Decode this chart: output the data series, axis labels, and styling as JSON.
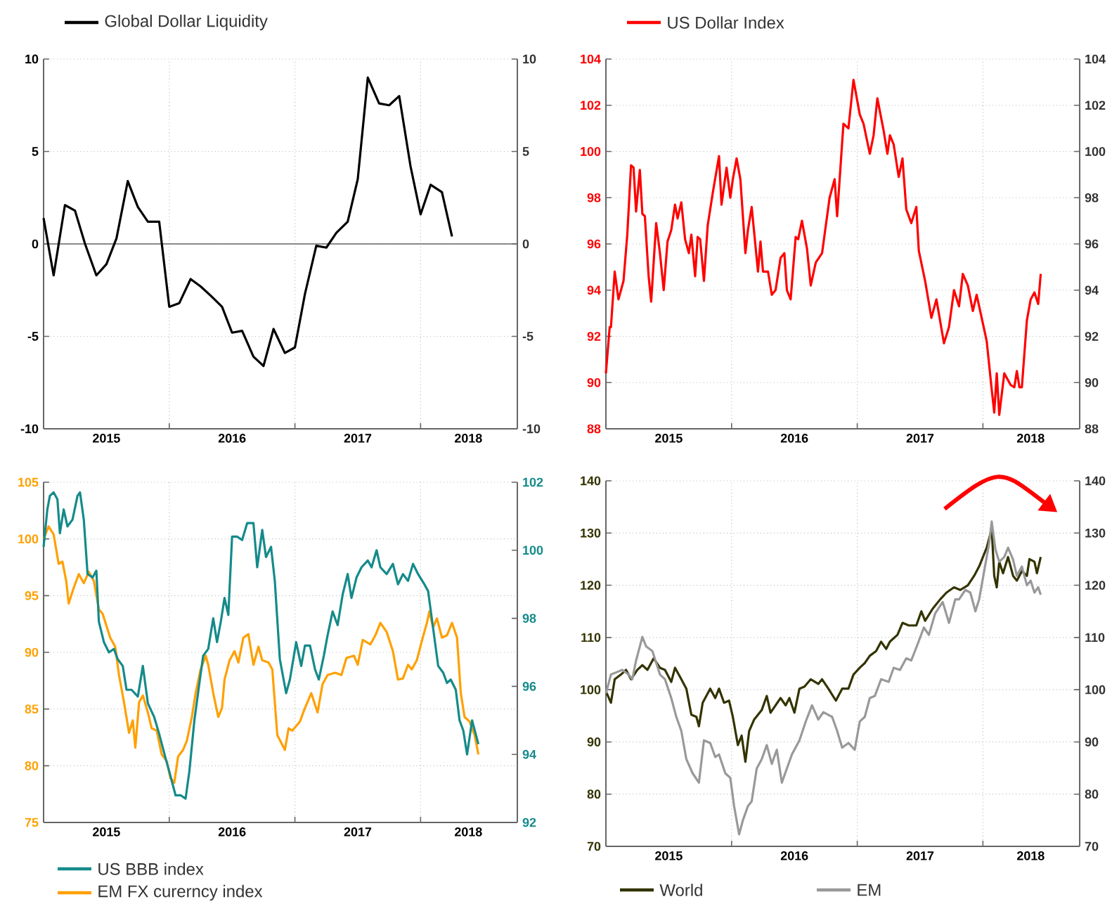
{
  "chart_data": [
    {
      "type": "line",
      "xlim": [
        2015,
        2018.77
      ],
      "xticks": [
        {
          "value": 2015,
          "label": null
        },
        {
          "value": 2015.5,
          "label": "2015"
        },
        {
          "value": 2016,
          "label": null
        },
        {
          "value": 2016.5,
          "label": "2016"
        },
        {
          "value": 2017,
          "label": null
        },
        {
          "value": 2017.5,
          "label": "2017"
        },
        {
          "value": 2018,
          "label": null
        },
        {
          "value": 2018.38,
          "label": "2018"
        }
      ],
      "ylim": [
        -10,
        10
      ],
      "yticks": [
        -10,
        -5,
        0,
        5,
        10
      ],
      "y2lim": [
        -10,
        10
      ],
      "y2ticks": [
        -10,
        -5,
        0,
        5,
        10
      ],
      "grid": true,
      "legend": "top",
      "ref_lines": [
        {
          "axis": "y",
          "value": 0
        }
      ],
      "series": [
        {
          "name": "Global Dollar Liquidity",
          "color": "#000000",
          "x": [
            2015.0,
            2015.08,
            2015.17,
            2015.25,
            2015.33,
            2015.42,
            2015.5,
            2015.58,
            2015.67,
            2015.75,
            2015.83,
            2015.92,
            2016.0,
            2016.08,
            2016.17,
            2016.25,
            2016.33,
            2016.42,
            2016.5,
            2016.58,
            2016.67,
            2016.75,
            2016.83,
            2016.92,
            2017.0,
            2017.08,
            2017.17,
            2017.25,
            2017.33,
            2017.42,
            2017.5,
            2017.58,
            2017.67,
            2017.75,
            2017.83,
            2017.92,
            2018.0,
            2018.08,
            2018.17,
            2018.25
          ],
          "values": [
            1.4,
            -1.7,
            2.1,
            1.8,
            0.0,
            -1.7,
            -1.1,
            0.3,
            3.4,
            2.0,
            1.2,
            1.2,
            -3.4,
            -3.2,
            -1.9,
            -2.3,
            -2.8,
            -3.4,
            -4.8,
            -4.7,
            -6.1,
            -6.6,
            -4.6,
            -5.9,
            -5.6,
            -2.7,
            -0.1,
            -0.2,
            0.6,
            1.2,
            3.5,
            9.0,
            7.6,
            7.5,
            8.0,
            4.2,
            1.6,
            3.2,
            2.8,
            0.4
          ]
        }
      ]
    },
    {
      "type": "line",
      "xlim": [
        2015,
        2018.77
      ],
      "xticks": [
        {
          "value": 2015,
          "label": null
        },
        {
          "value": 2015.5,
          "label": "2015"
        },
        {
          "value": 2016,
          "label": null
        },
        {
          "value": 2016.5,
          "label": "2016"
        },
        {
          "value": 2017,
          "label": null
        },
        {
          "value": 2017.5,
          "label": "2017"
        },
        {
          "value": 2018,
          "label": null
        },
        {
          "value": 2018.38,
          "label": "2018"
        }
      ],
      "ylim": [
        88,
        104
      ],
      "yticks": [
        88,
        90,
        92,
        94,
        96,
        98,
        100,
        102,
        104
      ],
      "y2lim": [
        88,
        104
      ],
      "y2ticks": [
        88,
        90,
        92,
        94,
        96,
        98,
        100,
        102,
        104
      ],
      "grid": true,
      "legend": "top",
      "series": [
        {
          "name": "US Dollar Index",
          "color": "#ff0000",
          "x": [
            2015.0,
            2015.03,
            2015.04,
            2015.07,
            2015.1,
            2015.14,
            2015.17,
            2015.2,
            2015.22,
            2015.24,
            2015.27,
            2015.29,
            2015.31,
            2015.34,
            2015.36,
            2015.4,
            2015.43,
            2015.46,
            2015.49,
            2015.52,
            2015.55,
            2015.57,
            2015.6,
            2015.63,
            2015.66,
            2015.68,
            2015.71,
            2015.73,
            2015.75,
            2015.78,
            2015.81,
            2015.85,
            2015.9,
            2015.92,
            2015.96,
            2015.99,
            2016.01,
            2016.04,
            2016.07,
            2016.11,
            2016.13,
            2016.16,
            2016.21,
            2016.23,
            2016.25,
            2016.29,
            2016.32,
            2016.35,
            2016.39,
            2016.42,
            2016.44,
            2016.47,
            2016.51,
            2016.53,
            2016.56,
            2016.6,
            2016.63,
            2016.67,
            2016.72,
            2016.78,
            2016.82,
            2016.84,
            2016.89,
            2016.93,
            2016.97,
            2017.02,
            2017.05,
            2017.1,
            2017.13,
            2017.16,
            2017.21,
            2017.24,
            2017.26,
            2017.29,
            2017.33,
            2017.36,
            2017.39,
            2017.43,
            2017.47,
            2017.49,
            2017.54,
            2017.59,
            2017.63,
            2017.69,
            2017.73,
            2017.77,
            2017.81,
            2017.84,
            2017.88,
            2017.92,
            2017.95,
            2017.99,
            2018.03,
            2018.07,
            2018.09,
            2018.11,
            2018.13,
            2018.17,
            2018.22,
            2018.25,
            2018.27,
            2018.29,
            2018.31,
            2018.35,
            2018.38,
            2018.41,
            2018.44,
            2018.46
          ],
          "values": [
            90.4,
            92.4,
            92.4,
            94.8,
            93.6,
            94.4,
            96.4,
            99.4,
            99.3,
            97.4,
            99.2,
            97.3,
            97.2,
            94.6,
            93.5,
            96.9,
            95.6,
            94.0,
            96.1,
            96.6,
            97.7,
            97.1,
            97.8,
            96.2,
            95.6,
            96.4,
            94.6,
            96.3,
            96.2,
            94.4,
            96.8,
            98.2,
            99.8,
            97.7,
            99.3,
            98.0,
            98.8,
            99.7,
            98.8,
            95.6,
            96.6,
            97.6,
            94.8,
            96.1,
            94.8,
            94.8,
            93.8,
            94.0,
            95.4,
            95.6,
            94.0,
            93.6,
            96.3,
            96.2,
            97.0,
            95.8,
            94.2,
            95.2,
            95.6,
            98.0,
            98.8,
            97.2,
            101.2,
            101.0,
            103.1,
            101.6,
            101.2,
            99.9,
            100.7,
            102.3,
            100.9,
            99.9,
            100.7,
            100.3,
            98.9,
            99.7,
            97.5,
            96.9,
            97.6,
            95.7,
            94.4,
            92.8,
            93.6,
            91.7,
            92.4,
            94.0,
            93.3,
            94.7,
            94.2,
            93.1,
            93.8,
            92.8,
            91.8,
            89.7,
            88.7,
            90.4,
            88.6,
            90.4,
            89.9,
            89.8,
            90.5,
            89.8,
            89.8,
            92.7,
            93.6,
            93.9,
            93.4,
            94.7
          ]
        }
      ]
    },
    {
      "type": "line",
      "xlim": [
        2015,
        2018.77
      ],
      "xticks": [
        {
          "value": 2015,
          "label": null
        },
        {
          "value": 2015.5,
          "label": "2015"
        },
        {
          "value": 2016,
          "label": null
        },
        {
          "value": 2016.5,
          "label": "2016"
        },
        {
          "value": 2017,
          "label": null
        },
        {
          "value": 2017.5,
          "label": "2017"
        },
        {
          "value": 2018,
          "label": null
        },
        {
          "value": 2018.38,
          "label": "2018"
        }
      ],
      "ylim": [
        75,
        105
      ],
      "yticks": [
        75,
        80,
        85,
        90,
        95,
        100,
        105
      ],
      "y2lim": [
        92,
        102
      ],
      "y2ticks": [
        92,
        94,
        96,
        98,
        100,
        102
      ],
      "grid": true,
      "legend": "bottom left",
      "series": [
        {
          "name": "US BBB index",
          "color": "#158a8a",
          "axis": "y2",
          "x": [
            2015.0,
            2015.03,
            2015.05,
            2015.08,
            2015.11,
            2015.13,
            2015.16,
            2015.19,
            2015.23,
            2015.27,
            2015.29,
            2015.32,
            2015.35,
            2015.39,
            2015.42,
            2015.44,
            2015.48,
            2015.52,
            2015.56,
            2015.59,
            2015.63,
            2015.66,
            2015.7,
            2015.75,
            2015.79,
            2015.83,
            2015.88,
            2015.92,
            2015.97,
            2016.0,
            2016.05,
            2016.09,
            2016.13,
            2016.16,
            2016.2,
            2016.24,
            2016.27,
            2016.31,
            2016.35,
            2016.38,
            2016.41,
            2016.44,
            2016.47,
            2016.5,
            2016.54,
            2016.58,
            2016.62,
            2016.67,
            2016.7,
            2016.74,
            2016.77,
            2016.81,
            2016.84,
            2016.88,
            2016.93,
            2016.96,
            2017.01,
            2017.05,
            2017.08,
            2017.12,
            2017.16,
            2017.19,
            2017.23,
            2017.26,
            2017.3,
            2017.34,
            2017.38,
            2017.42,
            2017.45,
            2017.49,
            2017.53,
            2017.58,
            2017.61,
            2017.65,
            2017.68,
            2017.73,
            2017.78,
            2017.82,
            2017.86,
            2017.9,
            2017.94,
            2017.98,
            2018.03,
            2018.06,
            2018.1,
            2018.14,
            2018.18,
            2018.21,
            2018.24,
            2018.28,
            2018.31,
            2018.34,
            2018.37,
            2018.41,
            2018.46
          ],
          "values": [
            100.1,
            101.2,
            101.6,
            101.7,
            101.5,
            100.5,
            101.2,
            100.7,
            100.9,
            101.6,
            101.7,
            100.9,
            99.3,
            99.2,
            99.4,
            97.9,
            97.3,
            97.0,
            97.1,
            96.8,
            96.6,
            95.9,
            95.9,
            95.7,
            96.6,
            95.5,
            95.1,
            94.6,
            93.9,
            93.5,
            92.8,
            92.8,
            92.7,
            93.5,
            95.0,
            96.1,
            96.9,
            97.1,
            98.0,
            97.3,
            97.9,
            98.6,
            98.1,
            100.4,
            100.4,
            100.3,
            100.8,
            100.8,
            99.5,
            100.6,
            99.8,
            100.1,
            99.1,
            96.8,
            95.8,
            96.2,
            97.3,
            96.6,
            97.2,
            97.2,
            96.5,
            96.2,
            96.9,
            97.5,
            98.2,
            97.8,
            98.7,
            99.3,
            98.6,
            99.2,
            99.5,
            99.7,
            99.5,
            100.0,
            99.5,
            99.3,
            99.6,
            99.0,
            99.3,
            99.1,
            99.6,
            99.3,
            99.0,
            98.8,
            97.7,
            96.6,
            96.4,
            96.1,
            96.2,
            95.9,
            95.0,
            94.7,
            94.0,
            95.0,
            94.3
          ]
        },
        {
          "name": "EM FX curerncy index",
          "color": "#ffa000",
          "x": [
            2015.0,
            2015.04,
            2015.08,
            2015.12,
            2015.15,
            2015.18,
            2015.2,
            2015.24,
            2015.28,
            2015.32,
            2015.36,
            2015.4,
            2015.44,
            2015.47,
            2015.53,
            2015.57,
            2015.6,
            2015.64,
            2015.68,
            2015.71,
            2015.73,
            2015.76,
            2015.79,
            2015.83,
            2015.86,
            2015.9,
            2015.94,
            2015.98,
            2016.01,
            2016.04,
            2016.07,
            2016.11,
            2016.14,
            2016.18,
            2016.21,
            2016.25,
            2016.29,
            2016.31,
            2016.35,
            2016.39,
            2016.42,
            2016.44,
            2016.48,
            2016.52,
            2016.55,
            2016.59,
            2016.63,
            2016.67,
            2016.71,
            2016.74,
            2016.79,
            2016.82,
            2016.86,
            2016.92,
            2016.95,
            2016.98,
            2017.04,
            2017.08,
            2017.13,
            2017.18,
            2017.22,
            2017.26,
            2017.32,
            2017.37,
            2017.41,
            2017.47,
            2017.5,
            2017.54,
            2017.6,
            2017.64,
            2017.68,
            2017.73,
            2017.78,
            2017.82,
            2017.86,
            2017.9,
            2017.93,
            2017.97,
            2018.01,
            2018.05,
            2018.07,
            2018.1,
            2018.13,
            2018.17,
            2018.21,
            2018.25,
            2018.29,
            2018.32,
            2018.35,
            2018.39,
            2018.43,
            2018.46
          ],
          "values": [
            100.0,
            101.1,
            100.4,
            97.8,
            98.0,
            96.3,
            94.3,
            95.7,
            96.9,
            96.1,
            97.1,
            96.3,
            93.8,
            93.4,
            91.3,
            90.5,
            88.0,
            85.6,
            82.9,
            84.0,
            81.6,
            85.6,
            86.2,
            84.7,
            83.3,
            83.1,
            81.0,
            80.4,
            78.9,
            78.5,
            80.8,
            81.4,
            82.2,
            84.3,
            86.4,
            88.5,
            89.7,
            88.9,
            86.4,
            84.3,
            85.1,
            87.6,
            89.3,
            90.1,
            89.1,
            91.3,
            91.6,
            88.9,
            90.5,
            89.3,
            89.1,
            88.5,
            82.7,
            81.4,
            83.3,
            83.1,
            83.9,
            85.1,
            86.4,
            84.7,
            87.2,
            88.0,
            88.2,
            88.0,
            89.5,
            89.7,
            88.9,
            91.1,
            90.7,
            91.5,
            92.6,
            91.8,
            90.1,
            87.6,
            87.7,
            88.9,
            88.5,
            89.3,
            91.0,
            92.6,
            93.6,
            92.2,
            93.0,
            91.3,
            91.5,
            92.6,
            91.3,
            86.4,
            84.3,
            83.9,
            82.7,
            81.0
          ]
        }
      ]
    },
    {
      "type": "line",
      "xlim": [
        2015,
        2018.77
      ],
      "xticks": [
        {
          "value": 2015,
          "label": null
        },
        {
          "value": 2015.5,
          "label": "2015"
        },
        {
          "value": 2016,
          "label": null
        },
        {
          "value": 2016.5,
          "label": "2016"
        },
        {
          "value": 2017,
          "label": null
        },
        {
          "value": 2017.5,
          "label": "2017"
        },
        {
          "value": 2018,
          "label": null
        },
        {
          "value": 2018.38,
          "label": "2018"
        }
      ],
      "ylim": [
        70,
        140
      ],
      "yticks": [
        70,
        80,
        90,
        100,
        110,
        120,
        130,
        140
      ],
      "y2lim": [
        70,
        140
      ],
      "y2ticks": [
        70,
        80,
        90,
        100,
        110,
        120,
        130,
        140
      ],
      "grid": true,
      "legend": "bottom",
      "series": [
        {
          "name": "World",
          "color": "#333300",
          "x": [
            2015.0,
            2015.04,
            2015.07,
            2015.12,
            2015.16,
            2015.2,
            2015.25,
            2015.29,
            2015.33,
            2015.38,
            2015.43,
            2015.47,
            2015.52,
            2015.55,
            2015.6,
            2015.64,
            2015.68,
            2015.72,
            2015.74,
            2015.77,
            2015.83,
            2015.87,
            2015.9,
            2015.94,
            2015.98,
            2016.01,
            2016.05,
            2016.08,
            2016.11,
            2016.14,
            2016.18,
            2016.24,
            2016.28,
            2016.31,
            2016.35,
            2016.39,
            2016.43,
            2016.46,
            2016.5,
            2016.54,
            2016.58,
            2016.63,
            2016.69,
            2016.72,
            2016.77,
            2016.83,
            2016.88,
            2016.93,
            2016.97,
            2017.02,
            2017.06,
            2017.1,
            2017.15,
            2017.19,
            2017.23,
            2017.26,
            2017.32,
            2017.36,
            2017.41,
            2017.47,
            2017.51,
            2017.54,
            2017.6,
            2017.66,
            2017.71,
            2017.77,
            2017.82,
            2017.88,
            2017.93,
            2017.97,
            2018.03,
            2018.07,
            2018.09,
            2018.11,
            2018.13,
            2018.16,
            2018.2,
            2018.24,
            2018.27,
            2018.31,
            2018.35,
            2018.37,
            2018.41,
            2018.43,
            2018.46
          ],
          "values": [
            99.7,
            97.5,
            102.0,
            102.9,
            103.8,
            102.0,
            103.8,
            104.7,
            103.8,
            106.0,
            104.2,
            103.8,
            101.5,
            104.2,
            102.0,
            100.2,
            95.2,
            94.8,
            93.0,
            97.5,
            100.2,
            98.4,
            100.2,
            97.5,
            97.9,
            94.8,
            89.4,
            91.2,
            86.2,
            92.1,
            94.3,
            96.1,
            98.8,
            95.6,
            97.0,
            98.4,
            97.0,
            98.4,
            95.6,
            100.2,
            100.6,
            102.0,
            101.1,
            102.0,
            100.2,
            97.9,
            100.2,
            100.2,
            102.9,
            104.2,
            105.1,
            106.5,
            107.4,
            109.2,
            107.8,
            109.2,
            110.5,
            112.8,
            112.3,
            112.3,
            115.0,
            113.2,
            115.5,
            117.3,
            118.6,
            119.6,
            119.1,
            120.0,
            121.8,
            123.6,
            127.2,
            130.8,
            121.8,
            119.6,
            124.5,
            122.3,
            125.4,
            121.8,
            120.9,
            122.7,
            121.8,
            125.0,
            124.5,
            122.3,
            125.4
          ]
        },
        {
          "name": "EM",
          "color": "#999999",
          "x": [
            2015.0,
            2015.04,
            2015.08,
            2015.13,
            2015.18,
            2015.21,
            2015.24,
            2015.29,
            2015.32,
            2015.37,
            2015.43,
            2015.47,
            2015.52,
            2015.56,
            2015.6,
            2015.64,
            2015.69,
            2015.74,
            2015.78,
            2015.83,
            2015.87,
            2015.9,
            2015.95,
            2015.99,
            2016.02,
            2016.06,
            2016.09,
            2016.13,
            2016.16,
            2016.2,
            2016.24,
            2016.28,
            2016.32,
            2016.36,
            2016.4,
            2016.44,
            2016.48,
            2016.54,
            2016.59,
            2016.64,
            2016.69,
            2016.73,
            2016.8,
            2016.84,
            2016.88,
            2016.93,
            2016.98,
            2017.02,
            2017.06,
            2017.1,
            2017.14,
            2017.19,
            2017.25,
            2017.29,
            2017.34,
            2017.39,
            2017.43,
            2017.48,
            2017.53,
            2017.57,
            2017.62,
            2017.68,
            2017.73,
            2017.78,
            2017.81,
            2017.86,
            2017.9,
            2017.94,
            2017.97,
            2018.01,
            2018.05,
            2018.07,
            2018.1,
            2018.13,
            2018.17,
            2018.2,
            2018.24,
            2018.27,
            2018.31,
            2018.35,
            2018.38,
            2018.41,
            2018.44,
            2018.46
          ],
          "values": [
            99.3,
            102.9,
            103.3,
            103.8,
            102.9,
            102.0,
            105.6,
            110.1,
            108.3,
            107.4,
            102.9,
            102.0,
            98.4,
            94.8,
            92.1,
            86.7,
            84.0,
            82.2,
            90.3,
            89.8,
            87.1,
            87.6,
            84.0,
            83.1,
            77.7,
            72.3,
            75.0,
            77.7,
            78.6,
            84.9,
            86.7,
            89.4,
            85.8,
            88.5,
            82.2,
            84.9,
            87.6,
            90.3,
            93.9,
            97.0,
            94.3,
            95.7,
            94.8,
            92.1,
            88.9,
            89.8,
            88.5,
            93.9,
            94.8,
            98.4,
            98.8,
            102.0,
            101.5,
            104.2,
            103.8,
            106.0,
            105.6,
            108.7,
            111.9,
            110.5,
            114.6,
            116.8,
            112.8,
            117.3,
            117.3,
            119.1,
            118.6,
            115.0,
            117.3,
            122.7,
            128.1,
            132.2,
            126.8,
            124.5,
            125.4,
            127.2,
            124.9,
            121.8,
            123.6,
            120.0,
            120.9,
            118.6,
            119.6,
            118.2
          ]
        }
      ]
    }
  ]
}
